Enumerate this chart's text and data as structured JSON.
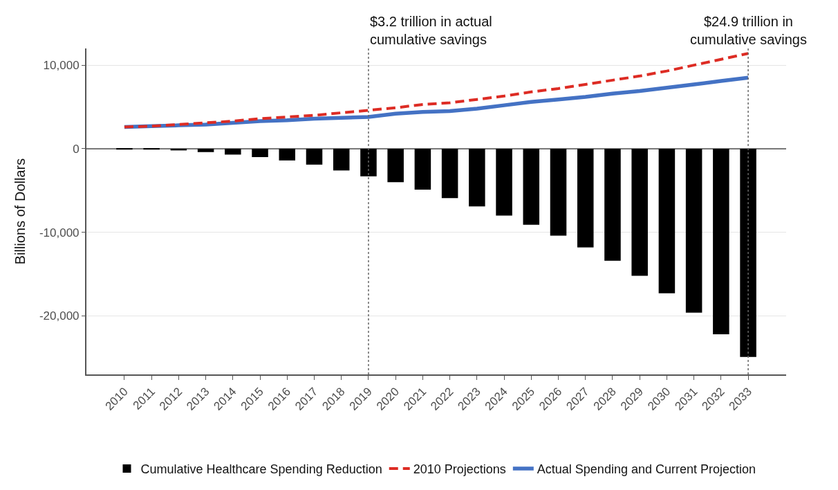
{
  "chart_data": {
    "type": "bar",
    "ylabel": "Billions of Dollars",
    "categories": [
      "2010",
      "2011",
      "2012",
      "2013",
      "2014",
      "2015",
      "2016",
      "2017",
      "2018",
      "2019",
      "2020",
      "2021",
      "2022",
      "2023",
      "2024",
      "2025",
      "2026",
      "2027",
      "2028",
      "2029",
      "2030",
      "2031",
      "2032",
      "2033"
    ],
    "series": [
      {
        "name": "Cumulative Healthcare Spending Reduction",
        "color": "#000000",
        "values": [
          -100,
          -100,
          -200,
          -400,
          -700,
          -1000,
          -1400,
          -1900,
          -2600,
          -3300,
          -4000,
          -4900,
          -5900,
          -6900,
          -8000,
          -9100,
          -10400,
          -11800,
          -13400,
          -15200,
          -17300,
          -19600,
          -22200,
          -24900
        ]
      },
      {
        "name": "2010 Projections",
        "type": "line",
        "line_style": "dashed",
        "color": "#dd2c24",
        "values": [
          2600,
          2700,
          2900,
          3100,
          3300,
          3600,
          3800,
          4000,
          4300,
          4600,
          4900,
          5300,
          5500,
          5900,
          6300,
          6800,
          7200,
          7700,
          8200,
          8700,
          9300,
          10000,
          10700,
          11400
        ]
      },
      {
        "name": "Actual Spending and Current Projection",
        "type": "line",
        "line_style": "solid",
        "color": "#4472c4",
        "values": [
          2600,
          2700,
          2800,
          2900,
          3100,
          3300,
          3400,
          3600,
          3700,
          3800,
          4200,
          4400,
          4500,
          4800,
          5200,
          5600,
          5900,
          6200,
          6600,
          6900,
          7300,
          7700,
          8100,
          8500
        ]
      }
    ],
    "ylim": [
      -27000,
      12000
    ],
    "yticks": [
      {
        "value": -20000,
        "label": "-20,000"
      },
      {
        "value": -10000,
        "label": "-10,000"
      },
      0,
      {
        "value": 10000,
        "label": "10,000"
      }
    ],
    "ref_lines": [
      {
        "axis": "x",
        "value": "2019",
        "label": "$3.2 trillion in actual\ncumulative savings",
        "line_style": "dotted",
        "color": "#666666"
      },
      {
        "axis": "x",
        "value": "2033",
        "label": "$24.9 trillion in\ncumulative savings",
        "line_style": "dotted",
        "color": "#666666"
      }
    ],
    "grid": "y",
    "legend": "bottom"
  }
}
